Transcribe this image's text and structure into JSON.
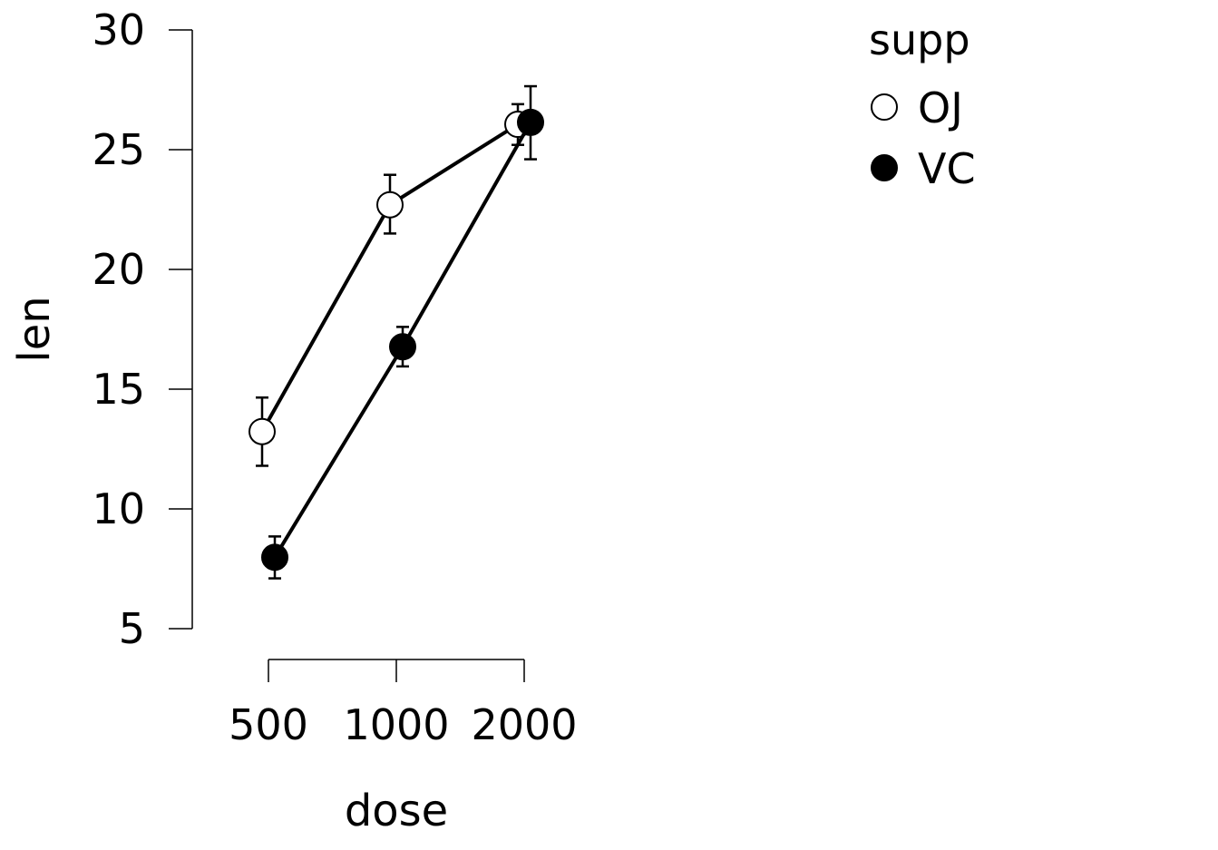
{
  "chart_data": {
    "type": "line",
    "categories": [
      "500",
      "1000",
      "2000"
    ],
    "xlabel": "dose",
    "ylabel": "len",
    "ylim": [
      5,
      30
    ],
    "yticks": [
      5,
      10,
      15,
      20,
      25,
      30
    ],
    "grid": false,
    "legend": {
      "title": "supp",
      "position": "top-right"
    },
    "series": [
      {
        "name": "OJ",
        "marker": "open-circle",
        "values": [
          13.23,
          22.7,
          26.06
        ],
        "error_low": [
          11.8,
          21.5,
          25.2
        ],
        "error_high": [
          14.65,
          23.95,
          26.9
        ]
      },
      {
        "name": "VC",
        "marker": "filled-circle",
        "values": [
          7.98,
          16.77,
          26.14
        ],
        "error_low": [
          7.1,
          15.95,
          24.6
        ],
        "error_high": [
          8.85,
          17.6,
          27.65
        ]
      }
    ]
  }
}
